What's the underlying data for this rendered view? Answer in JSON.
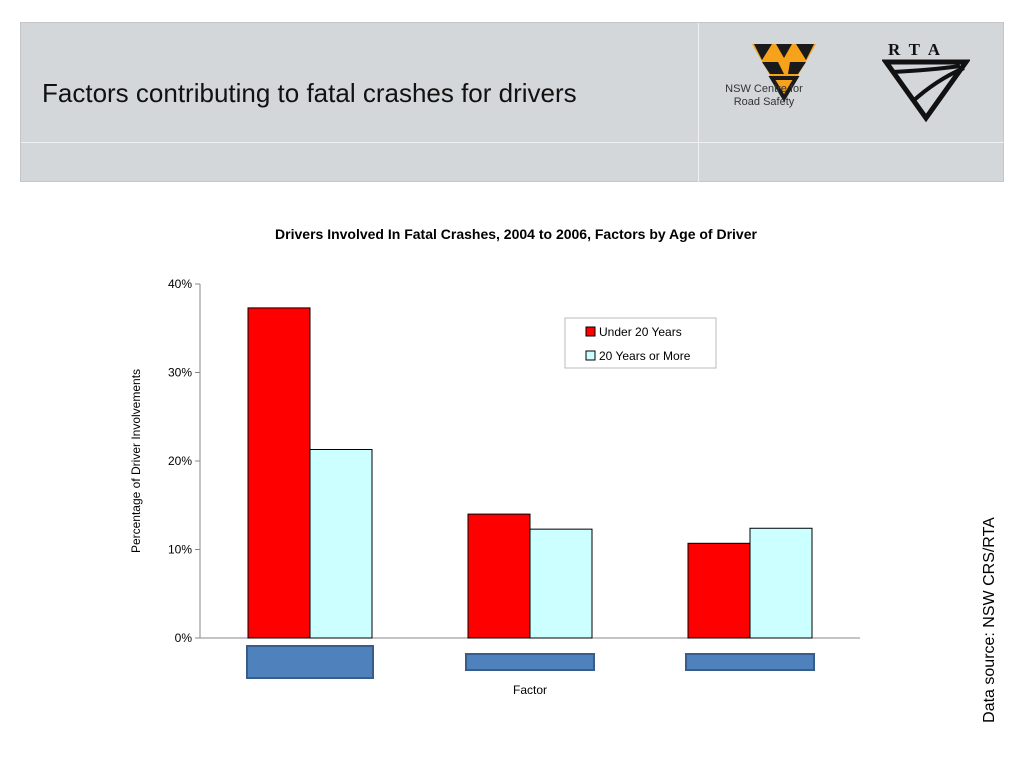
{
  "header": {
    "title": "Factors contributing to fatal crashes for drivers",
    "logo1_caption_line1": "NSW Centre for",
    "logo1_caption_line2": "Road Safety",
    "logo2_text": "RTA"
  },
  "source_note": "Data source: NSW CRS/RTA",
  "colors": {
    "under20": "#ff0000",
    "over20": "#ccffff",
    "factor_box": "#4f81bd",
    "header_bg": "#d3d7da"
  },
  "chart_data": {
    "type": "bar",
    "title": "Drivers Involved In Fatal Crashes, 2004 to 2006, Factors by Age of Driver",
    "xlabel": "Factor",
    "ylabel": "Percentage of Driver Involvements",
    "ylim": [
      0,
      40
    ],
    "yticks": [
      "0%",
      "10%",
      "20%",
      "30%",
      "40%"
    ],
    "categories": [
      "",
      "",
      ""
    ],
    "series": [
      {
        "name": "Under 20 Years",
        "values": [
          37.3,
          14.0,
          10.7
        ]
      },
      {
        "name": "20 Years or More",
        "values": [
          21.3,
          12.3,
          12.4
        ]
      }
    ],
    "legend": "top-right",
    "grid": false
  }
}
